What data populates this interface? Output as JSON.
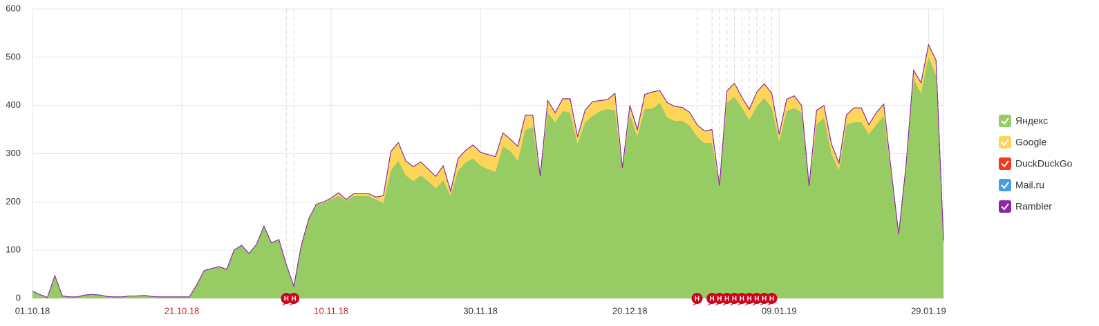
{
  "chart_data": {
    "type": "stacked-area",
    "x": [
      "01.10.18",
      "02.10.18",
      "03.10.18",
      "04.10.18",
      "05.10.18",
      "06.10.18",
      "07.10.18",
      "08.10.18",
      "09.10.18",
      "10.10.18",
      "11.10.18",
      "12.10.18",
      "13.10.18",
      "14.10.18",
      "15.10.18",
      "16.10.18",
      "17.10.18",
      "18.10.18",
      "19.10.18",
      "20.10.18",
      "21.10.18",
      "22.10.18",
      "23.10.18",
      "24.10.18",
      "25.10.18",
      "26.10.18",
      "27.10.18",
      "28.10.18",
      "29.10.18",
      "30.10.18",
      "31.10.18",
      "01.11.18",
      "02.11.18",
      "03.11.18",
      "04.11.18",
      "05.11.18",
      "06.11.18",
      "07.11.18",
      "08.11.18",
      "09.11.18",
      "10.11.18",
      "11.11.18",
      "12.11.18",
      "13.11.18",
      "14.11.18",
      "15.11.18",
      "16.11.18",
      "17.11.18",
      "18.11.18",
      "19.11.18",
      "20.11.18",
      "21.11.18",
      "22.11.18",
      "23.11.18",
      "24.11.18",
      "25.11.18",
      "26.11.18",
      "27.11.18",
      "28.11.18",
      "29.11.18",
      "30.11.18",
      "01.12.18",
      "02.12.18",
      "03.12.18",
      "04.12.18",
      "05.12.18",
      "06.12.18",
      "07.12.18",
      "08.12.18",
      "09.12.18",
      "10.12.18",
      "11.12.18",
      "12.12.18",
      "13.12.18",
      "14.12.18",
      "15.12.18",
      "16.12.18",
      "17.12.18",
      "18.12.18",
      "19.12.18",
      "20.12.18",
      "21.12.18",
      "22.12.18",
      "23.12.18",
      "24.12.18",
      "25.12.18",
      "26.12.18",
      "27.12.18",
      "28.12.18",
      "29.12.18",
      "30.12.18",
      "31.12.18",
      "01.01.19",
      "02.01.19",
      "03.01.19",
      "04.01.19",
      "05.01.19",
      "06.01.19",
      "07.01.19",
      "08.01.19",
      "09.01.19",
      "10.01.19",
      "11.01.19",
      "12.01.19",
      "13.01.19",
      "14.01.19",
      "15.01.19",
      "16.01.19",
      "17.01.19",
      "18.01.19",
      "19.01.19",
      "20.01.19",
      "21.01.19",
      "22.01.19",
      "23.01.19",
      "24.01.19",
      "25.01.19",
      "26.01.19",
      "27.01.19",
      "28.01.19",
      "29.01.19",
      "30.01.19",
      "31.01.19"
    ],
    "series": [
      {
        "name": "Яндекс",
        "color": "#97cc64",
        "values": [
          15,
          8,
          2,
          47,
          5,
          3,
          3,
          7,
          8,
          7,
          4,
          3,
          3,
          5,
          5,
          6,
          4,
          3,
          3,
          3,
          3,
          3,
          28,
          58,
          62,
          66,
          60,
          100,
          110,
          93,
          112,
          150,
          115,
          122,
          70,
          25,
          110,
          165,
          193,
          198,
          205,
          213,
          202,
          212,
          212,
          212,
          205,
          198,
          265,
          285,
          255,
          243,
          255,
          243,
          228,
          245,
          212,
          265,
          282,
          290,
          275,
          268,
          262,
          315,
          305,
          285,
          350,
          355,
          248,
          385,
          365,
          388,
          385,
          320,
          365,
          378,
          388,
          392,
          390,
          265,
          380,
          335,
          393,
          393,
          405,
          375,
          368,
          368,
          358,
          335,
          322,
          322,
          228,
          405,
          418,
          395,
          370,
          398,
          415,
          395,
          325,
          388,
          395,
          385,
          228,
          360,
          375,
          300,
          265,
          360,
          365,
          365,
          340,
          360,
          378,
          255,
          130,
          268,
          455,
          425,
          500,
          462,
          115
        ]
      },
      {
        "name": "Google",
        "color": "#ffd559",
        "values": [
          0,
          0,
          0,
          0,
          0,
          0,
          0,
          0,
          0,
          0,
          0,
          0,
          0,
          0,
          0,
          0,
          0,
          0,
          0,
          0,
          0,
          0,
          0,
          0,
          0,
          0,
          0,
          0,
          0,
          0,
          0,
          0,
          0,
          0,
          0,
          0,
          0,
          0,
          2,
          2,
          3,
          5,
          3,
          5,
          5,
          5,
          5,
          15,
          40,
          38,
          30,
          30,
          28,
          25,
          25,
          30,
          10,
          25,
          25,
          28,
          28,
          30,
          32,
          28,
          25,
          30,
          30,
          25,
          5,
          25,
          20,
          25,
          28,
          15,
          25,
          30,
          22,
          20,
          35,
          5,
          20,
          15,
          30,
          35,
          25,
          30,
          30,
          28,
          28,
          25,
          25,
          28,
          5,
          25,
          28,
          22,
          22,
          30,
          30,
          30,
          15,
          25,
          25,
          15,
          5,
          30,
          25,
          20,
          15,
          20,
          30,
          30,
          20,
          25,
          25,
          10,
          3,
          10,
          18,
          22,
          25,
          32,
          5
        ]
      },
      {
        "name": "DuckDuckGo",
        "color": "#f5391c",
        "values": [
          0,
          0,
          0,
          0,
          0,
          0,
          0,
          0,
          0,
          0,
          0,
          0,
          0,
          0,
          0,
          0,
          0,
          0,
          0,
          0,
          0,
          0,
          0,
          0,
          0,
          0,
          0,
          0,
          0,
          0,
          0,
          0,
          0,
          0,
          0,
          0,
          0,
          0,
          0,
          0,
          0,
          1,
          0,
          0,
          0,
          0,
          0,
          0,
          0,
          0,
          0,
          0,
          0,
          0,
          0,
          0,
          0,
          0,
          0,
          0,
          0,
          0,
          0,
          0,
          0,
          0,
          0,
          0,
          0,
          0,
          0,
          1,
          1,
          0,
          0,
          0,
          0,
          0,
          0,
          0,
          0,
          0,
          0,
          0,
          1,
          1,
          0,
          0,
          0,
          0,
          0,
          0,
          0,
          0,
          0,
          0,
          0,
          0,
          0,
          0,
          0,
          0,
          0,
          0,
          0,
          0,
          0,
          0,
          0,
          0,
          0,
          0,
          0,
          0,
          0,
          0,
          0,
          0,
          0,
          0,
          1,
          0,
          0
        ]
      },
      {
        "name": "Mail.ru",
        "color": "#4a9de0",
        "values": [
          0,
          0,
          0,
          0,
          0,
          0,
          0,
          0,
          0,
          0,
          0,
          0,
          0,
          0,
          0,
          0,
          0,
          0,
          0,
          0,
          0,
          0,
          0,
          0,
          0,
          0,
          0,
          0,
          0,
          0,
          0,
          0,
          0,
          0,
          0,
          0,
          0,
          0,
          0,
          0,
          0,
          0,
          0,
          0,
          0,
          0,
          0,
          0,
          0,
          0,
          0,
          0,
          0,
          0,
          0,
          0,
          0,
          0,
          0,
          0,
          0,
          0,
          0,
          0,
          0,
          0,
          0,
          0,
          0,
          0,
          0,
          0,
          0,
          0,
          0,
          0,
          0,
          0,
          0,
          0,
          0,
          0,
          0,
          0,
          0,
          0,
          0,
          0,
          0,
          0,
          0,
          0,
          0,
          0,
          0,
          0,
          0,
          0,
          0,
          0,
          0,
          0,
          0,
          0,
          0,
          0,
          0,
          0,
          0,
          0,
          0,
          0,
          0,
          0,
          0,
          0,
          0,
          0,
          0,
          0,
          0,
          0,
          0
        ]
      },
      {
        "name": "Rambler",
        "color": "#8e24aa",
        "values": [
          0,
          0,
          0,
          0,
          0,
          0,
          0,
          0,
          0,
          0,
          0,
          0,
          0,
          0,
          0,
          0,
          0,
          0,
          0,
          0,
          0,
          0,
          0,
          0,
          0,
          0,
          0,
          0,
          0,
          0,
          0,
          0,
          0,
          0,
          0,
          0,
          0,
          0,
          0,
          0,
          0,
          0,
          0,
          0,
          0,
          0,
          0,
          0,
          0,
          0,
          0,
          0,
          0,
          0,
          0,
          0,
          0,
          0,
          0,
          0,
          0,
          0,
          0,
          0,
          0,
          0,
          0,
          0,
          0,
          0,
          0,
          0,
          0,
          0,
          0,
          0,
          0,
          0,
          0,
          0,
          0,
          0,
          0,
          0,
          0,
          0,
          0,
          0,
          0,
          0,
          0,
          0,
          0,
          0,
          0,
          0,
          0,
          0,
          0,
          0,
          0,
          0,
          0,
          0,
          0,
          0,
          0,
          0,
          0,
          0,
          0,
          0,
          0,
          0,
          0,
          0,
          0,
          0,
          0,
          0,
          0,
          0,
          0
        ]
      }
    ],
    "ylim": [
      0,
      600
    ],
    "yticks": [
      0,
      100,
      200,
      300,
      400,
      500,
      600
    ],
    "xticks": [
      "01.10.18",
      "21.10.18",
      "10.11.18",
      "30.11.18",
      "20.12.18",
      "09.01.19",
      "29.01.19"
    ],
    "xtick_colors": [
      "#333333",
      "#cc2222",
      "#cc2222",
      "#333333",
      "#333333",
      "#333333",
      "#333333"
    ],
    "annotations": [
      {
        "x": "04.11.18",
        "label": "H"
      },
      {
        "x": "05.11.18",
        "label": "H"
      },
      {
        "x": "29.12.18",
        "label": "H"
      },
      {
        "x": "31.12.18",
        "label": "H"
      },
      {
        "x": "01.01.19",
        "label": "H"
      },
      {
        "x": "02.01.19",
        "label": "H"
      },
      {
        "x": "03.01.19",
        "label": "H"
      },
      {
        "x": "04.01.19",
        "label": "H"
      },
      {
        "x": "05.01.19",
        "label": "H"
      },
      {
        "x": "06.01.19",
        "label": "H"
      },
      {
        "x": "07.01.19",
        "label": "H"
      },
      {
        "x": "08.01.19",
        "label": "H"
      }
    ],
    "grid": true,
    "legend": "right"
  }
}
